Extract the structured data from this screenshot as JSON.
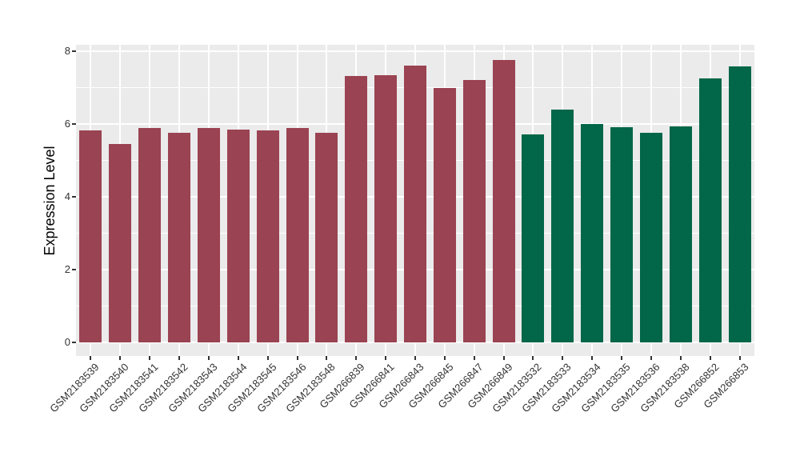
{
  "chart_data": {
    "type": "bar",
    "title": "",
    "xlabel": "",
    "ylabel": "Expression Level",
    "ylim": [
      0,
      8
    ],
    "yticks": [
      0,
      2,
      4,
      6,
      8
    ],
    "minor_gridlines": [
      1,
      3,
      5,
      7
    ],
    "grid": "white major and minor gridlines on gray panel",
    "legend_position": "none",
    "panel_background": "#EBEBEB",
    "gridline_color": "#FFFFFF",
    "axis_text_color": "#333333",
    "group_colors": {
      "group1": "#9A4352",
      "group2": "#026649"
    },
    "categories": [
      "GSM2183539",
      "GSM2183540",
      "GSM2183541",
      "GSM2183542",
      "GSM2183543",
      "GSM2183544",
      "GSM2183545",
      "GSM2183546",
      "GSM2183548",
      "GSM266839",
      "GSM266841",
      "GSM266843",
      "GSM266845",
      "GSM266847",
      "GSM266849",
      "GSM2183532",
      "GSM2183533",
      "GSM2183534",
      "GSM2183535",
      "GSM2183536",
      "GSM2183538",
      "GSM266852",
      "GSM266853"
    ],
    "values": [
      5.83,
      5.44,
      5.89,
      5.76,
      5.88,
      5.85,
      5.82,
      5.88,
      5.75,
      7.33,
      7.35,
      7.61,
      6.98,
      7.22,
      7.76,
      5.72,
      6.4,
      6.0,
      5.91,
      5.76,
      5.93,
      7.25,
      7.58
    ],
    "groups": [
      "group1",
      "group1",
      "group1",
      "group1",
      "group1",
      "group1",
      "group1",
      "group1",
      "group1",
      "group1",
      "group1",
      "group1",
      "group1",
      "group1",
      "group1",
      "group2",
      "group2",
      "group2",
      "group2",
      "group2",
      "group2",
      "group2",
      "group2"
    ]
  }
}
